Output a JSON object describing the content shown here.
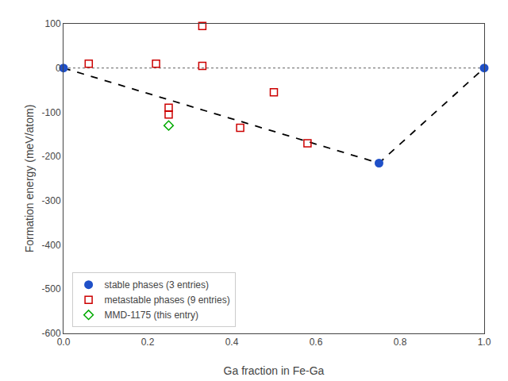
{
  "chart_data": {
    "type": "scatter",
    "xlabel": "Ga fraction in Fe-Ga",
    "ylabel": "Formation energy (meV/atom)",
    "xlim": [
      0.0,
      1.0
    ],
    "ylim": [
      -600,
      100
    ],
    "xticks": [
      {
        "value": 0.0,
        "label": "0.0"
      },
      0.2,
      0.4,
      0.6,
      0.8,
      {
        "value": 1.0,
        "label": "1.0"
      }
    ],
    "yticks": [
      100,
      0,
      -100,
      -200,
      -300,
      -400,
      -500,
      -600
    ],
    "grid": false,
    "legend": "lower left",
    "series": [
      {
        "name": "stable phases (3 entries)",
        "type": "scatter",
        "marker": "circle",
        "color": "#1f50c8",
        "x": [
          0.0,
          0.75,
          1.0
        ],
        "values": [
          0.0,
          -215.0,
          0.0
        ]
      },
      {
        "name": "metastable phases (9 entries)",
        "type": "scatter",
        "marker": "square-open",
        "color": "#cc0000",
        "x": [
          0.22,
          0.25,
          0.25,
          0.33,
          0.33,
          0.42,
          0.5,
          0.58,
          0.06
        ],
        "values": [
          10.0,
          -90.0,
          -105.0,
          95.0,
          5.0,
          -135.0,
          -55.0,
          -170.0,
          10.0
        ]
      },
      {
        "name": "MMD-1175 (this entry)",
        "type": "scatter",
        "marker": "diamond-open",
        "color": "#00aa00",
        "x": [
          0.25
        ],
        "values": [
          -130.0
        ]
      },
      {
        "type": "line",
        "line_style": "dashed",
        "color": "black",
        "x": [
          0.0,
          0.75,
          1.0
        ],
        "values": [
          0.0,
          -215.0,
          0.0
        ]
      },
      {
        "type": "hline",
        "line_style": "dotted",
        "color": "gray",
        "values": [
          0.0
        ]
      }
    ]
  }
}
